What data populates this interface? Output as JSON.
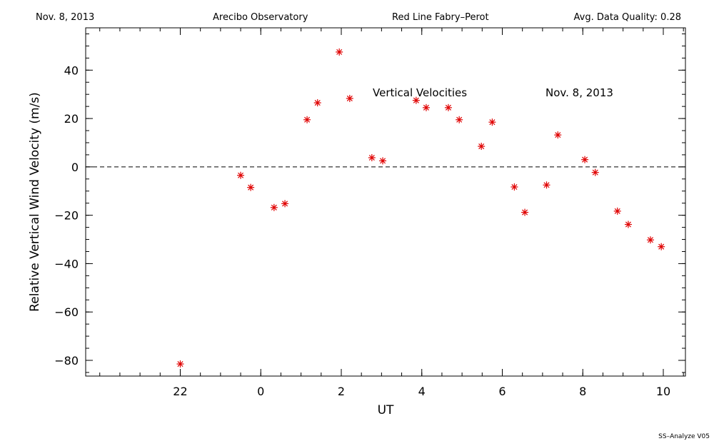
{
  "header": {
    "date": "Nov. 8, 2013",
    "observatory": "Arecibo Observatory",
    "instrument": "Red Line Fabry–Perot",
    "quality": "Avg. Data Quality: 0.28"
  },
  "footer": "SS–Analyze V05",
  "chart_data": {
    "type": "scatter",
    "title": "Vertical Velocities",
    "annotation": "Nov. 8, 2013",
    "xlabel": "UT",
    "ylabel": "Relative Vertical Wind Velocity (m/s)",
    "xlim": [
      -2.35,
      12.55
    ],
    "ylim": [
      -86.5,
      57.5
    ],
    "x_ticks": [
      {
        "v": 0,
        "label": "22"
      },
      {
        "v": 2,
        "label": "0"
      },
      {
        "v": 4,
        "label": "2"
      },
      {
        "v": 6,
        "label": "4"
      },
      {
        "v": 8,
        "label": "6"
      },
      {
        "v": 10,
        "label": "8"
      },
      {
        "v": 12,
        "label": "10"
      }
    ],
    "x_minor_step": 0.5,
    "y_ticks": [
      {
        "v": -80,
        "label": "−80"
      },
      {
        "v": -60,
        "label": "−60"
      },
      {
        "v": -40,
        "label": "−40"
      },
      {
        "v": -20,
        "label": "−20"
      },
      {
        "v": 0,
        "label": "0"
      },
      {
        "v": 20,
        "label": "20"
      },
      {
        "v": 40,
        "label": "40"
      }
    ],
    "y_minor_step": 5,
    "reference_line": 0,
    "marker_color": "#e00000",
    "points": [
      {
        "x": 21.67,
        "y": -81.5
      },
      {
        "x": 23.17,
        "y": -3.5
      },
      {
        "x": 23.42,
        "y": -8.5
      },
      {
        "x": 24.0,
        "y": -16.8
      },
      {
        "x": 24.27,
        "y": -15.2
      },
      {
        "x": 24.82,
        "y": 19.5
      },
      {
        "x": 25.08,
        "y": 26.5
      },
      {
        "x": 25.62,
        "y": 47.5
      },
      {
        "x": 25.88,
        "y": 28.3
      },
      {
        "x": 26.43,
        "y": 3.8
      },
      {
        "x": 26.7,
        "y": 2.5
      },
      {
        "x": 27.53,
        "y": 27.5
      },
      {
        "x": 27.78,
        "y": 24.5
      },
      {
        "x": 28.33,
        "y": 24.5
      },
      {
        "x": 28.6,
        "y": 19.5
      },
      {
        "x": 29.15,
        "y": 8.5
      },
      {
        "x": 29.42,
        "y": 18.5
      },
      {
        "x": 29.97,
        "y": -8.3
      },
      {
        "x": 30.23,
        "y": -18.8
      },
      {
        "x": 30.77,
        "y": -7.5
      },
      {
        "x": 31.05,
        "y": 13.2
      },
      {
        "x": 31.72,
        "y": 3.0
      },
      {
        "x": 31.98,
        "y": -2.3
      },
      {
        "x": 32.53,
        "y": -18.3
      },
      {
        "x": 32.8,
        "y": -23.8
      },
      {
        "x": 33.35,
        "y": -30.2
      },
      {
        "x": 33.62,
        "y": -33.0
      }
    ]
  }
}
